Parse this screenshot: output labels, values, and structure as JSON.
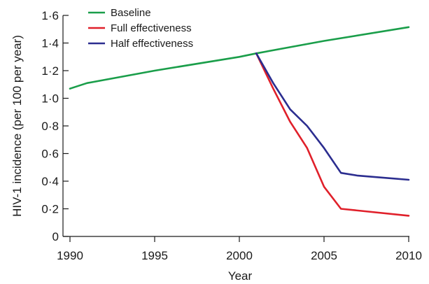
{
  "chart_data": {
    "type": "line",
    "title": "",
    "xlabel": "Year",
    "ylabel": "HIV-1 incidence (per 100 per year)",
    "xlim": [
      1990,
      2010
    ],
    "ylim": [
      0,
      1.6
    ],
    "x_ticks": [
      1990,
      1995,
      2000,
      2005,
      2010
    ],
    "x_tick_labels": [
      "1990",
      "1995",
      "2000",
      "2005",
      "2010"
    ],
    "y_ticks": [
      0,
      0.2,
      0.4,
      0.6,
      0.8,
      1.0,
      1.2,
      1.4,
      1.6
    ],
    "y_tick_labels": [
      "0",
      "0·2",
      "0·4",
      "0·6",
      "0·8",
      "1·0",
      "1·2",
      "1·4",
      "1·6"
    ],
    "grid": false,
    "legend_position": "top-left",
    "series": [
      {
        "name": "Baseline",
        "color": "#1a9e4a",
        "points": [
          [
            1990,
            1.07
          ],
          [
            1991,
            1.11
          ],
          [
            1995,
            1.2
          ],
          [
            2000,
            1.3
          ],
          [
            2001,
            1.325
          ],
          [
            2005,
            1.415
          ],
          [
            2010,
            1.515
          ]
        ]
      },
      {
        "name": "Full effectiveness",
        "color": "#e0202a",
        "points": [
          [
            2001,
            1.325
          ],
          [
            2002,
            1.07
          ],
          [
            2003,
            0.83
          ],
          [
            2004,
            0.64
          ],
          [
            2005,
            0.36
          ],
          [
            2006,
            0.2
          ],
          [
            2010,
            0.15
          ]
        ]
      },
      {
        "name": "Half effectiveness",
        "color": "#2b2d8f",
        "points": [
          [
            2001,
            1.325
          ],
          [
            2002,
            1.11
          ],
          [
            2003,
            0.92
          ],
          [
            2004,
            0.8
          ],
          [
            2005,
            0.64
          ],
          [
            2006,
            0.46
          ],
          [
            2007,
            0.44
          ],
          [
            2010,
            0.41
          ]
        ]
      }
    ]
  }
}
